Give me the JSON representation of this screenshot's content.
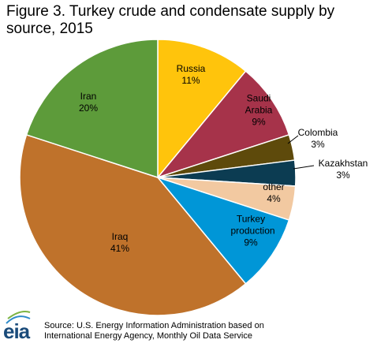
{
  "logo": "eia",
  "chart_data": {
    "type": "pie",
    "title": "Figure 3. Turkey crude and condensate supply by source, 2015",
    "source": "Source: U.S. Energy Information Administration based on International Energy Agency, Monthly Oil Data Service",
    "categories": [
      "Russia",
      "Saudi Arabia",
      "Colombia",
      "Kazakhstan",
      "other",
      "Turkey production",
      "Iraq",
      "Iran"
    ],
    "values": [
      11,
      9,
      3,
      3,
      4,
      9,
      41,
      20
    ],
    "value_labels": [
      "11%",
      "9%",
      "3%",
      "3%",
      "4%",
      "9%",
      "41%",
      "20%"
    ],
    "colors": [
      "#ffc40c",
      "#a6334a",
      "#5e4a0b",
      "#0c3c52",
      "#f2c9a1",
      "#0096d7",
      "#bf722b",
      "#5d9b3a"
    ]
  }
}
